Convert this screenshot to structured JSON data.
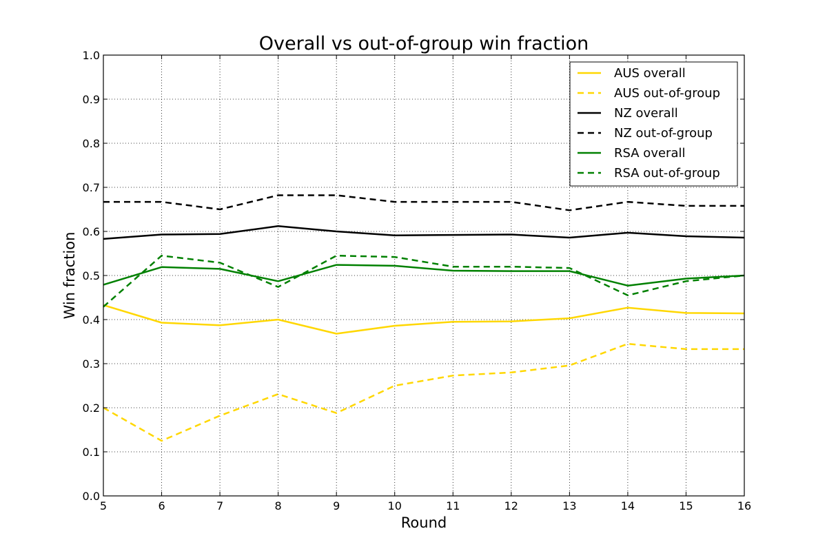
{
  "chart_data": {
    "type": "line",
    "title": "Overall vs out-of-group win fraction",
    "xlabel": "Round",
    "ylabel": "Win fraction",
    "xlim": [
      5,
      16
    ],
    "ylim": [
      0.0,
      1.0
    ],
    "x_ticks": [
      "5",
      "6",
      "7",
      "8",
      "9",
      "10",
      "11",
      "12",
      "13",
      "14",
      "15",
      "16"
    ],
    "y_ticks": [
      "0.0",
      "0.1",
      "0.2",
      "0.3",
      "0.4",
      "0.5",
      "0.6",
      "0.7",
      "0.8",
      "0.9",
      "1.0"
    ],
    "grid": true,
    "legend_position": "top-right",
    "x": [
      5,
      6,
      7,
      8,
      9,
      10,
      11,
      12,
      13,
      14,
      15,
      16
    ],
    "series": [
      {
        "name": "AUS overall",
        "color": "#ffd700",
        "style": "solid",
        "values": [
          0.433,
          0.393,
          0.387,
          0.4,
          0.368,
          0.386,
          0.395,
          0.396,
          0.403,
          0.427,
          0.415,
          0.414
        ]
      },
      {
        "name": "AUS out-of-group",
        "color": "#ffd700",
        "style": "dashed",
        "values": [
          0.2,
          0.125,
          0.182,
          0.231,
          0.188,
          0.25,
          0.273,
          0.28,
          0.296,
          0.345,
          0.333,
          0.333
        ]
      },
      {
        "name": "NZ overall",
        "color": "#000000",
        "style": "solid",
        "values": [
          0.583,
          0.593,
          0.594,
          0.612,
          0.6,
          0.591,
          0.592,
          0.593,
          0.586,
          0.597,
          0.589,
          0.586
        ]
      },
      {
        "name": "NZ out-of-group",
        "color": "#000000",
        "style": "dashed",
        "values": [
          0.667,
          0.667,
          0.65,
          0.682,
          0.682,
          0.667,
          0.667,
          0.667,
          0.648,
          0.667,
          0.658,
          0.658
        ]
      },
      {
        "name": "RSA overall",
        "color": "#008000",
        "style": "solid",
        "values": [
          0.479,
          0.519,
          0.515,
          0.487,
          0.524,
          0.522,
          0.511,
          0.51,
          0.51,
          0.477,
          0.493,
          0.5
        ]
      },
      {
        "name": "RSA out-of-group",
        "color": "#008000",
        "style": "dashed",
        "values": [
          0.429,
          0.545,
          0.529,
          0.474,
          0.545,
          0.542,
          0.52,
          0.52,
          0.517,
          0.455,
          0.487,
          0.5
        ]
      }
    ]
  }
}
